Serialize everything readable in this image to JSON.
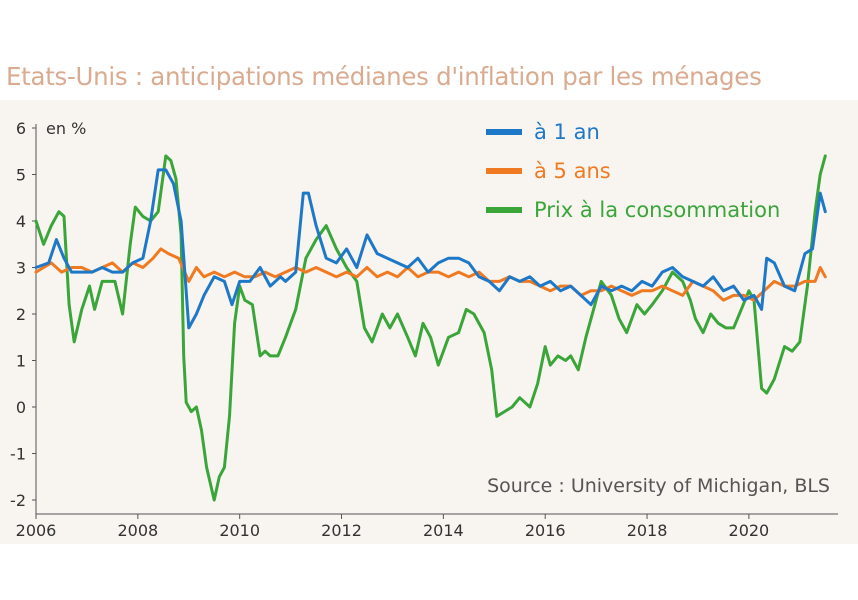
{
  "title": "Etats-Unis : anticipations médianes d'inflation par les ménages",
  "source": "Source : University of Michigan, BLS",
  "colors": {
    "background": "#f8f4ef",
    "title": "#d9ab90",
    "series_1an": "#1e78c8",
    "series_5ans": "#f07a22",
    "series_cpi": "#3aa63a"
  },
  "chart_data": {
    "type": "line",
    "ylabel": "en %",
    "ylim": [
      -2,
      6
    ],
    "xlim": [
      2006.0,
      2021.75
    ],
    "x_ticks": [
      "2006",
      "2008",
      "2010",
      "2012",
      "2014",
      "2016",
      "2018",
      "2020"
    ],
    "y_ticks": [
      "6",
      "5",
      "4",
      "3",
      "2",
      "1",
      "0",
      "-1",
      "-2"
    ],
    "grid": false,
    "legend_position": "top-right",
    "series": [
      {
        "name": "à 1 an",
        "color": "#1e78c8",
        "points": [
          [
            2006.0,
            3.0
          ],
          [
            2006.25,
            3.1
          ],
          [
            2006.4,
            3.6
          ],
          [
            2006.55,
            3.2
          ],
          [
            2006.7,
            2.9
          ],
          [
            2006.9,
            2.9
          ],
          [
            2007.1,
            2.9
          ],
          [
            2007.3,
            3.0
          ],
          [
            2007.5,
            2.9
          ],
          [
            2007.7,
            2.9
          ],
          [
            2007.9,
            3.1
          ],
          [
            2008.1,
            3.2
          ],
          [
            2008.25,
            4.0
          ],
          [
            2008.4,
            5.1
          ],
          [
            2008.55,
            5.1
          ],
          [
            2008.7,
            4.8
          ],
          [
            2008.85,
            4.0
          ],
          [
            2009.0,
            1.7
          ],
          [
            2009.15,
            2.0
          ],
          [
            2009.3,
            2.4
          ],
          [
            2009.5,
            2.8
          ],
          [
            2009.7,
            2.7
          ],
          [
            2009.85,
            2.2
          ],
          [
            2010.0,
            2.7
          ],
          [
            2010.2,
            2.7
          ],
          [
            2010.4,
            3.0
          ],
          [
            2010.6,
            2.6
          ],
          [
            2010.8,
            2.8
          ],
          [
            2010.9,
            2.7
          ],
          [
            2011.1,
            2.9
          ],
          [
            2011.25,
            4.6
          ],
          [
            2011.35,
            4.6
          ],
          [
            2011.5,
            3.9
          ],
          [
            2011.7,
            3.2
          ],
          [
            2011.9,
            3.1
          ],
          [
            2012.1,
            3.4
          ],
          [
            2012.3,
            3.0
          ],
          [
            2012.5,
            3.7
          ],
          [
            2012.7,
            3.3
          ],
          [
            2012.9,
            3.2
          ],
          [
            2013.1,
            3.1
          ],
          [
            2013.3,
            3.0
          ],
          [
            2013.5,
            3.2
          ],
          [
            2013.7,
            2.9
          ],
          [
            2013.9,
            3.1
          ],
          [
            2014.1,
            3.2
          ],
          [
            2014.3,
            3.2
          ],
          [
            2014.5,
            3.1
          ],
          [
            2014.7,
            2.8
          ],
          [
            2014.9,
            2.7
          ],
          [
            2015.1,
            2.5
          ],
          [
            2015.3,
            2.8
          ],
          [
            2015.5,
            2.7
          ],
          [
            2015.7,
            2.8
          ],
          [
            2015.9,
            2.6
          ],
          [
            2016.1,
            2.7
          ],
          [
            2016.3,
            2.5
          ],
          [
            2016.5,
            2.6
          ],
          [
            2016.7,
            2.4
          ],
          [
            2016.9,
            2.2
          ],
          [
            2017.1,
            2.6
          ],
          [
            2017.3,
            2.5
          ],
          [
            2017.5,
            2.6
          ],
          [
            2017.7,
            2.5
          ],
          [
            2017.9,
            2.7
          ],
          [
            2018.1,
            2.6
          ],
          [
            2018.3,
            2.9
          ],
          [
            2018.5,
            3.0
          ],
          [
            2018.7,
            2.8
          ],
          [
            2018.9,
            2.7
          ],
          [
            2019.1,
            2.6
          ],
          [
            2019.3,
            2.8
          ],
          [
            2019.5,
            2.5
          ],
          [
            2019.7,
            2.6
          ],
          [
            2019.9,
            2.3
          ],
          [
            2020.1,
            2.4
          ],
          [
            2020.25,
            2.1
          ],
          [
            2020.35,
            3.2
          ],
          [
            2020.5,
            3.1
          ],
          [
            2020.7,
            2.6
          ],
          [
            2020.9,
            2.5
          ],
          [
            2021.1,
            3.3
          ],
          [
            2021.25,
            3.4
          ],
          [
            2021.4,
            4.6
          ],
          [
            2021.5,
            4.2
          ]
        ]
      },
      {
        "name": "à 5 ans",
        "color": "#f07a22",
        "points": [
          [
            2006.0,
            2.9
          ],
          [
            2006.3,
            3.1
          ],
          [
            2006.5,
            2.9
          ],
          [
            2006.7,
            3.0
          ],
          [
            2006.9,
            3.0
          ],
          [
            2007.1,
            2.9
          ],
          [
            2007.3,
            3.0
          ],
          [
            2007.5,
            3.1
          ],
          [
            2007.7,
            2.9
          ],
          [
            2007.9,
            3.1
          ],
          [
            2008.1,
            3.0
          ],
          [
            2008.3,
            3.2
          ],
          [
            2008.45,
            3.4
          ],
          [
            2008.6,
            3.3
          ],
          [
            2008.8,
            3.2
          ],
          [
            2009.0,
            2.7
          ],
          [
            2009.15,
            3.0
          ],
          [
            2009.3,
            2.8
          ],
          [
            2009.5,
            2.9
          ],
          [
            2009.7,
            2.8
          ],
          [
            2009.9,
            2.9
          ],
          [
            2010.1,
            2.8
          ],
          [
            2010.3,
            2.8
          ],
          [
            2010.5,
            2.9
          ],
          [
            2010.7,
            2.8
          ],
          [
            2010.9,
            2.9
          ],
          [
            2011.1,
            3.0
          ],
          [
            2011.3,
            2.9
          ],
          [
            2011.5,
            3.0
          ],
          [
            2011.7,
            2.9
          ],
          [
            2011.9,
            2.8
          ],
          [
            2012.1,
            2.9
          ],
          [
            2012.3,
            2.8
          ],
          [
            2012.5,
            3.0
          ],
          [
            2012.7,
            2.8
          ],
          [
            2012.9,
            2.9
          ],
          [
            2013.1,
            2.8
          ],
          [
            2013.3,
            3.0
          ],
          [
            2013.5,
            2.8
          ],
          [
            2013.7,
            2.9
          ],
          [
            2013.9,
            2.9
          ],
          [
            2014.1,
            2.8
          ],
          [
            2014.3,
            2.9
          ],
          [
            2014.5,
            2.8
          ],
          [
            2014.7,
            2.9
          ],
          [
            2014.9,
            2.7
          ],
          [
            2015.1,
            2.7
          ],
          [
            2015.3,
            2.8
          ],
          [
            2015.5,
            2.7
          ],
          [
            2015.7,
            2.7
          ],
          [
            2015.9,
            2.6
          ],
          [
            2016.1,
            2.5
          ],
          [
            2016.3,
            2.6
          ],
          [
            2016.5,
            2.6
          ],
          [
            2016.7,
            2.4
          ],
          [
            2016.9,
            2.5
          ],
          [
            2017.1,
            2.5
          ],
          [
            2017.3,
            2.6
          ],
          [
            2017.5,
            2.5
          ],
          [
            2017.7,
            2.4
          ],
          [
            2017.9,
            2.5
          ],
          [
            2018.1,
            2.5
          ],
          [
            2018.3,
            2.6
          ],
          [
            2018.5,
            2.5
          ],
          [
            2018.7,
            2.4
          ],
          [
            2018.9,
            2.7
          ],
          [
            2019.1,
            2.6
          ],
          [
            2019.3,
            2.5
          ],
          [
            2019.5,
            2.3
          ],
          [
            2019.7,
            2.4
          ],
          [
            2019.9,
            2.4
          ],
          [
            2020.1,
            2.3
          ],
          [
            2020.3,
            2.5
          ],
          [
            2020.5,
            2.7
          ],
          [
            2020.7,
            2.6
          ],
          [
            2020.9,
            2.6
          ],
          [
            2021.1,
            2.7
          ],
          [
            2021.3,
            2.7
          ],
          [
            2021.4,
            3.0
          ],
          [
            2021.5,
            2.8
          ]
        ]
      },
      {
        "name": "Prix à la consommation",
        "color": "#3aa63a",
        "points": [
          [
            2006.0,
            4.0
          ],
          [
            2006.15,
            3.5
          ],
          [
            2006.3,
            3.9
          ],
          [
            2006.45,
            4.2
          ],
          [
            2006.55,
            4.1
          ],
          [
            2006.65,
            2.2
          ],
          [
            2006.75,
            1.4
          ],
          [
            2006.9,
            2.1
          ],
          [
            2007.05,
            2.6
          ],
          [
            2007.15,
            2.1
          ],
          [
            2007.3,
            2.7
          ],
          [
            2007.4,
            2.7
          ],
          [
            2007.55,
            2.7
          ],
          [
            2007.7,
            2.0
          ],
          [
            2007.85,
            3.5
          ],
          [
            2007.95,
            4.3
          ],
          [
            2008.1,
            4.1
          ],
          [
            2008.25,
            4.0
          ],
          [
            2008.4,
            4.2
          ],
          [
            2008.55,
            5.4
          ],
          [
            2008.65,
            5.3
          ],
          [
            2008.75,
            4.9
          ],
          [
            2008.85,
            3.7
          ],
          [
            2008.9,
            1.1
          ],
          [
            2008.95,
            0.1
          ],
          [
            2009.05,
            -0.1
          ],
          [
            2009.15,
            0.0
          ],
          [
            2009.25,
            -0.5
          ],
          [
            2009.35,
            -1.3
          ],
          [
            2009.5,
            -2.0
          ],
          [
            2009.6,
            -1.5
          ],
          [
            2009.7,
            -1.3
          ],
          [
            2009.8,
            -0.2
          ],
          [
            2009.9,
            1.8
          ],
          [
            2010.0,
            2.6
          ],
          [
            2010.1,
            2.3
          ],
          [
            2010.25,
            2.2
          ],
          [
            2010.4,
            1.1
          ],
          [
            2010.5,
            1.2
          ],
          [
            2010.6,
            1.1
          ],
          [
            2010.75,
            1.1
          ],
          [
            2010.9,
            1.5
          ],
          [
            2011.1,
            2.1
          ],
          [
            2011.3,
            3.2
          ],
          [
            2011.5,
            3.6
          ],
          [
            2011.7,
            3.9
          ],
          [
            2011.9,
            3.4
          ],
          [
            2012.1,
            3.0
          ],
          [
            2012.3,
            2.7
          ],
          [
            2012.45,
            1.7
          ],
          [
            2012.6,
            1.4
          ],
          [
            2012.8,
            2.0
          ],
          [
            2012.95,
            1.7
          ],
          [
            2013.1,
            2.0
          ],
          [
            2013.3,
            1.5
          ],
          [
            2013.45,
            1.1
          ],
          [
            2013.6,
            1.8
          ],
          [
            2013.75,
            1.5
          ],
          [
            2013.9,
            0.9
          ],
          [
            2014.1,
            1.5
          ],
          [
            2014.3,
            1.6
          ],
          [
            2014.45,
            2.1
          ],
          [
            2014.6,
            2.0
          ],
          [
            2014.8,
            1.6
          ],
          [
            2014.95,
            0.8
          ],
          [
            2015.05,
            -0.2
          ],
          [
            2015.2,
            -0.1
          ],
          [
            2015.35,
            0.0
          ],
          [
            2015.5,
            0.2
          ],
          [
            2015.7,
            0.0
          ],
          [
            2015.85,
            0.5
          ],
          [
            2016.0,
            1.3
          ],
          [
            2016.1,
            0.9
          ],
          [
            2016.25,
            1.1
          ],
          [
            2016.4,
            1.0
          ],
          [
            2016.5,
            1.1
          ],
          [
            2016.65,
            0.8
          ],
          [
            2016.8,
            1.5
          ],
          [
            2016.95,
            2.1
          ],
          [
            2017.1,
            2.7
          ],
          [
            2017.3,
            2.4
          ],
          [
            2017.45,
            1.9
          ],
          [
            2017.6,
            1.6
          ],
          [
            2017.8,
            2.2
          ],
          [
            2017.95,
            2.0
          ],
          [
            2018.1,
            2.2
          ],
          [
            2018.3,
            2.5
          ],
          [
            2018.5,
            2.9
          ],
          [
            2018.7,
            2.7
          ],
          [
            2018.85,
            2.3
          ],
          [
            2018.95,
            1.9
          ],
          [
            2019.1,
            1.6
          ],
          [
            2019.25,
            2.0
          ],
          [
            2019.4,
            1.8
          ],
          [
            2019.55,
            1.7
          ],
          [
            2019.7,
            1.7
          ],
          [
            2019.85,
            2.1
          ],
          [
            2020.0,
            2.5
          ],
          [
            2020.1,
            2.3
          ],
          [
            2020.25,
            0.4
          ],
          [
            2020.35,
            0.3
          ],
          [
            2020.5,
            0.6
          ],
          [
            2020.7,
            1.3
          ],
          [
            2020.85,
            1.2
          ],
          [
            2021.0,
            1.4
          ],
          [
            2021.15,
            2.6
          ],
          [
            2021.3,
            4.2
          ],
          [
            2021.4,
            5.0
          ],
          [
            2021.5,
            5.4
          ]
        ]
      }
    ]
  }
}
